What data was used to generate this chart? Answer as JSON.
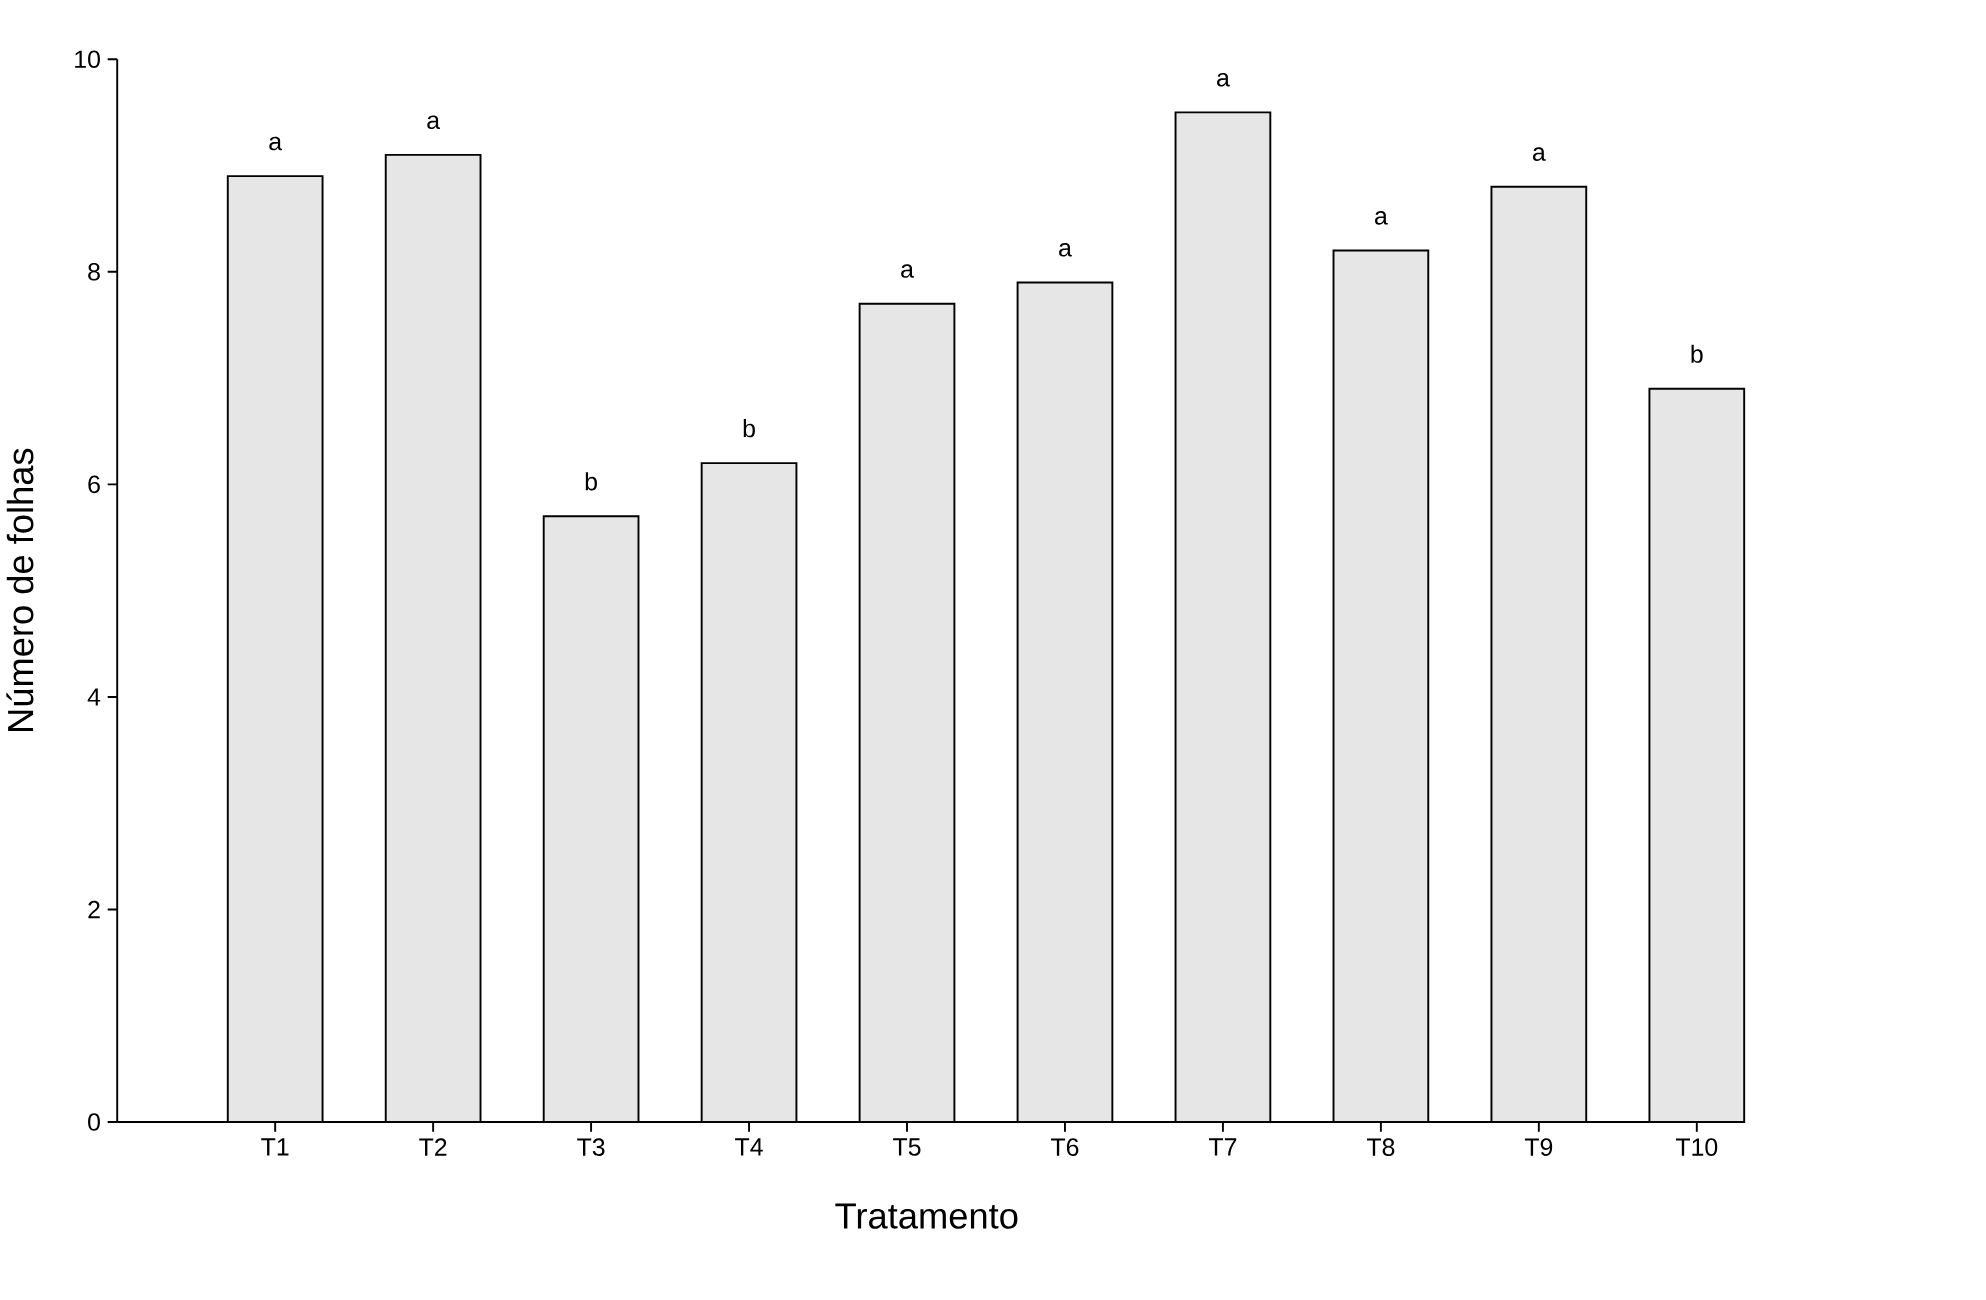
{
  "chart_data": {
    "type": "bar",
    "xlabel": "Tratamento",
    "ylabel": "Número de folhas",
    "categories": [
      "T1",
      "T2",
      "T3",
      "T4",
      "T5",
      "T6",
      "T7",
      "T8",
      "T9",
      "T10"
    ],
    "values": [
      8.9,
      9.1,
      5.7,
      6.2,
      7.7,
      7.9,
      9.5,
      8.2,
      8.8,
      6.9
    ],
    "color": "#e6e6e6",
    "ylim": [
      0,
      10
    ],
    "yticks": [
      0,
      2,
      4,
      6,
      8,
      10
    ],
    "grid": false,
    "annotations": [
      {
        "text": "a",
        "x": "T1",
        "y": 8.9
      },
      {
        "text": "a",
        "x": "T2",
        "y": 9.1
      },
      {
        "text": "b",
        "x": "T3",
        "y": 5.7
      },
      {
        "text": "b",
        "x": "T4",
        "y": 6.2
      },
      {
        "text": "a",
        "x": "T5",
        "y": 7.7
      },
      {
        "text": "a",
        "x": "T6",
        "y": 7.9
      },
      {
        "text": "a",
        "x": "T7",
        "y": 9.5
      },
      {
        "text": "a",
        "x": "T8",
        "y": 8.2
      },
      {
        "text": "a",
        "x": "T9",
        "y": 8.8
      },
      {
        "text": "b",
        "x": "T10",
        "y": 6.9
      }
    ]
  }
}
